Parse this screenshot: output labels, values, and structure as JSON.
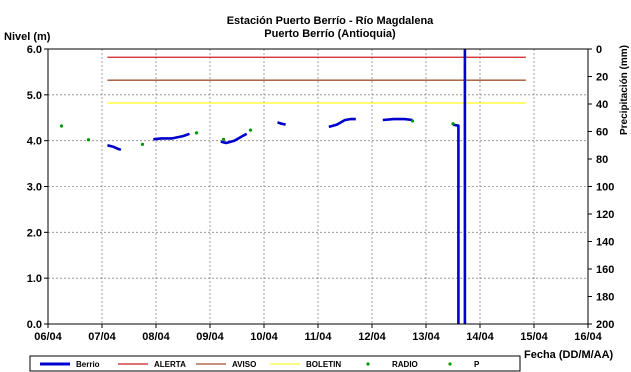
{
  "chart_data": {
    "type": "line",
    "title": "Estación Puerto Berrío - Río Magdalena",
    "subtitle": "Puerto Berrío (Antioquia)",
    "ylabel": "Nivel (m)",
    "y2label": "Precipitación (mm)",
    "xlabel": "Fecha (DD/M/AA)",
    "xlim": [
      0,
      10
    ],
    "ylim": [
      0,
      6
    ],
    "y2lim": [
      200,
      0
    ],
    "x_ticks": [
      "06/04",
      "07/04",
      "08/04",
      "09/04",
      "10/04",
      "11/04",
      "12/04",
      "13/04",
      "14/04",
      "15/04",
      "16/04"
    ],
    "y_ticks": [
      "0.0",
      "1.0",
      "2.0",
      "3.0",
      "4.0",
      "5.0",
      "6.0"
    ],
    "y2_ticks": [
      "0",
      "20",
      "40",
      "60",
      "80",
      "100",
      "120",
      "140",
      "160",
      "180",
      "200"
    ],
    "grid": true,
    "legend_position": "bottom",
    "legend": [
      {
        "label": "Berrio",
        "kind": "thick-line",
        "color": "#0000cc"
      },
      {
        "label": "ALERTA",
        "kind": "line",
        "color": "#cc2222"
      },
      {
        "label": "AVISO",
        "kind": "line",
        "color": "#a0522d"
      },
      {
        "label": "BOLETIN",
        "kind": "line",
        "color": "#ffff33"
      },
      {
        "label": "RADIO",
        "kind": "dot",
        "color": "#009900"
      },
      {
        "label": "P",
        "kind": "dot",
        "color": "#009900"
      }
    ],
    "thresholds": [
      {
        "name": "ALERTA",
        "value": 5.82,
        "x_start": 1.1,
        "x_end": 8.85,
        "color": "#cc2222"
      },
      {
        "name": "AVISO",
        "value": 5.32,
        "x_start": 1.1,
        "x_end": 8.85,
        "color": "#a0522d"
      },
      {
        "name": "BOLETIN",
        "value": 4.82,
        "x_start": 1.1,
        "x_end": 8.85,
        "color": "#ffff33"
      }
    ],
    "series": [
      {
        "name": "Berrio",
        "color": "#0000cc",
        "segments": [
          [
            [
              1.1,
              3.9
            ],
            [
              1.2,
              3.87
            ],
            [
              1.3,
              3.82
            ],
            [
              1.35,
              3.8
            ]
          ],
          [
            [
              1.95,
              4.03
            ],
            [
              2.1,
              4.05
            ],
            [
              2.3,
              4.05
            ],
            [
              2.5,
              4.1
            ],
            [
              2.62,
              4.15
            ]
          ],
          [
            [
              3.2,
              3.98
            ],
            [
              3.3,
              3.95
            ],
            [
              3.45,
              4.0
            ],
            [
              3.6,
              4.1
            ],
            [
              3.68,
              4.15
            ]
          ],
          [
            [
              4.25,
              4.4
            ],
            [
              4.3,
              4.38
            ],
            [
              4.4,
              4.35
            ]
          ],
          [
            [
              5.2,
              4.3
            ],
            [
              5.35,
              4.35
            ],
            [
              5.5,
              4.45
            ],
            [
              5.6,
              4.47
            ],
            [
              5.7,
              4.47
            ]
          ],
          [
            [
              6.2,
              4.45
            ],
            [
              6.4,
              4.47
            ],
            [
              6.6,
              4.47
            ],
            [
              6.75,
              4.45
            ]
          ],
          [
            [
              7.5,
              4.35
            ],
            [
              7.58,
              4.33
            ],
            [
              7.6,
              4.33
            ],
            [
              7.6,
              0.0
            ]
          ],
          [
            [
              7.72,
              0.0
            ],
            [
              7.72,
              6.0
            ]
          ]
        ]
      }
    ],
    "points": [
      {
        "name": "RADIO",
        "color": "#009900",
        "values": [
          [
            0.25,
            4.32
          ],
          [
            0.75,
            4.02
          ],
          [
            1.75,
            3.92
          ],
          [
            2.75,
            4.17
          ],
          [
            3.25,
            4.03
          ],
          [
            3.75,
            4.23
          ],
          [
            6.75,
            4.43
          ],
          [
            7.5,
            4.37
          ]
        ]
      }
    ]
  }
}
